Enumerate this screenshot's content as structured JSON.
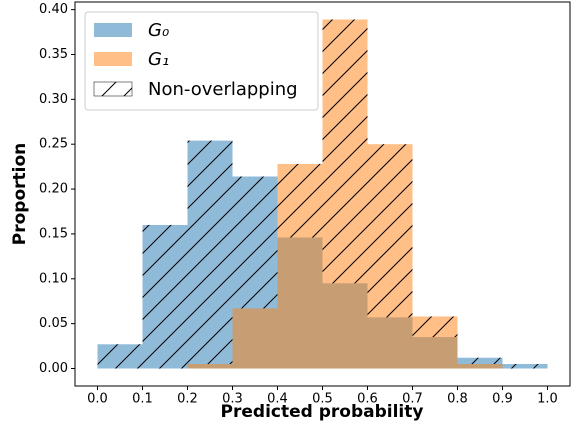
{
  "chart_data": {
    "type": "histogram",
    "xlabel": "Predicted probability",
    "ylabel": "Proportion",
    "bins": [
      0,
      0.1,
      0.2,
      0.3,
      0.4,
      0.5,
      0.6,
      0.7,
      0.8,
      0.9,
      1.0
    ],
    "series": [
      {
        "name": "G₀",
        "color": "#1f77b4",
        "values": [
          0.027,
          0.16,
          0.254,
          0.214,
          0.146,
          0.095,
          0.057,
          0.035,
          0.012,
          0.005
        ]
      },
      {
        "name": "G₁",
        "color": "#ff7f0e",
        "values": [
          0,
          0,
          0.005,
          0.067,
          0.228,
          0.389,
          0.25,
          0.058,
          0.005,
          0
        ]
      }
    ],
    "hatch_label": "Non-overlapping",
    "xlim": [
      -0.05,
      1.05
    ],
    "xticks": [
      {
        "value": 0,
        "label": "0.0"
      },
      {
        "value": 0.1,
        "label": "0.1"
      },
      {
        "value": 0.2,
        "label": "0.2"
      },
      {
        "value": 0.3,
        "label": "0.3"
      },
      {
        "value": 0.4,
        "label": "0.4"
      },
      {
        "value": 0.5,
        "label": "0.5"
      },
      {
        "value": 0.6,
        "label": "0.6"
      },
      {
        "value": 0.7,
        "label": "0.7"
      },
      {
        "value": 0.8,
        "label": "0.8"
      },
      {
        "value": 0.9,
        "label": "0.9"
      },
      {
        "value": 1.0,
        "label": "1.0"
      }
    ],
    "ylim": [
      -0.0195,
      0.4085
    ],
    "yticks": [
      {
        "value": 0,
        "label": "0.00"
      },
      {
        "value": 0.05,
        "label": "0.05"
      },
      {
        "value": 0.1,
        "label": "0.10"
      },
      {
        "value": 0.15,
        "label": "0.15"
      },
      {
        "value": 0.2,
        "label": "0.20"
      },
      {
        "value": 0.25,
        "label": "0.25"
      },
      {
        "value": 0.3,
        "label": "0.30"
      },
      {
        "value": 0.35,
        "label": "0.35"
      },
      {
        "value": 0.4,
        "label": "0.40"
      }
    ],
    "legend": "upper left",
    "alpha": 0.5
  }
}
